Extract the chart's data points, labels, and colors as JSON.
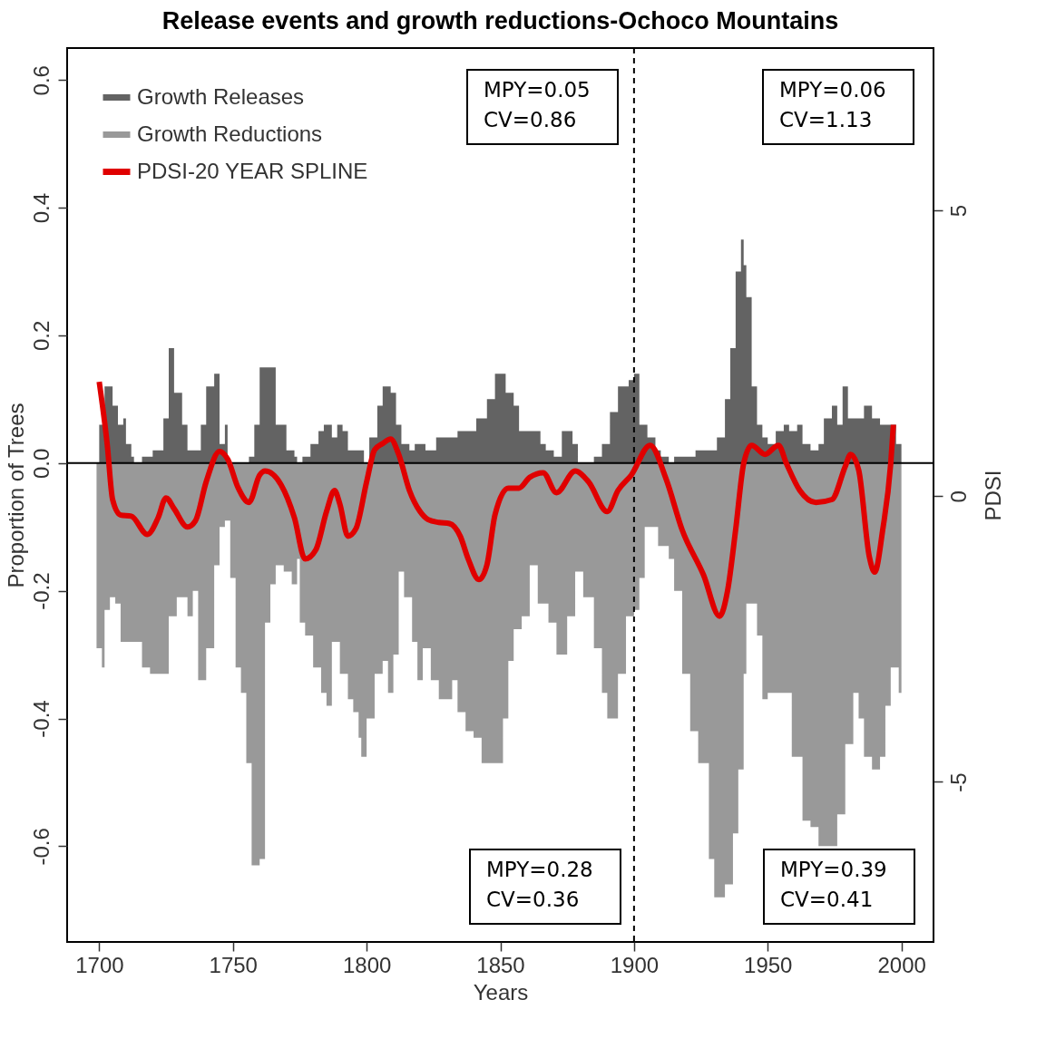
{
  "chart_data": {
    "type": "area",
    "title": "Release events and growth reductions-Ochoco Mountains",
    "xlabel": "Years",
    "ylabel": "Proportion of Trees",
    "y2label": "PDSI",
    "xlim": [
      1688,
      2012
    ],
    "xticks": [
      1700,
      1750,
      1800,
      1850,
      1900,
      1950,
      2000
    ],
    "ylim": [
      -0.75,
      0.65
    ],
    "yticks": [
      -0.6,
      -0.4,
      -0.2,
      {
        "value": 0,
        "label": "0.0"
      },
      0.2,
      0.4,
      0.6
    ],
    "y2lim": [
      -7.8,
      7.84
    ],
    "y2ticks": [
      -5,
      0,
      5
    ],
    "series": [
      {
        "name": "Growth Releases",
        "color": "#636363",
        "x": [
          1700,
          1702,
          1705,
          1707,
          1709,
          1710,
          1712,
          1713,
          1716,
          1720,
          1724,
          1726,
          1728,
          1731,
          1733,
          1736,
          1738,
          1740,
          1743,
          1745,
          1747,
          1748,
          1752,
          1756,
          1758,
          1760,
          1764,
          1766,
          1770,
          1773,
          1774,
          1776,
          1779,
          1782,
          1784,
          1787,
          1789,
          1791,
          1793,
          1797,
          1799,
          1801,
          1804,
          1806,
          1809,
          1811,
          1813,
          1816,
          1818,
          1822,
          1824,
          1826,
          1830,
          1834,
          1838,
          1841,
          1845,
          1848,
          1852,
          1855,
          1857,
          1861,
          1865,
          1867,
          1870,
          1873,
          1875,
          1877,
          1879,
          1882,
          1885,
          1888,
          1891,
          1894,
          1898,
          1900,
          1902,
          1905,
          1908,
          1910,
          1913,
          1915,
          1920,
          1923,
          1928,
          1931,
          1934,
          1936,
          1938,
          1940,
          1941,
          1942,
          1944,
          1946,
          1948,
          1950,
          1953,
          1956,
          1958,
          1961,
          1963,
          1966,
          1969,
          1971,
          1974,
          1976,
          1978,
          1980,
          1983,
          1986,
          1989,
          1992,
          1996,
          1998,
          2000
        ],
        "values": [
          0.06,
          0.12,
          0.09,
          0.06,
          0.07,
          0.03,
          0.01,
          0,
          0.01,
          0.02,
          0.07,
          0.18,
          0.11,
          0.06,
          0.02,
          0.02,
          0.06,
          0.12,
          0.14,
          0.03,
          0.06,
          0,
          0,
          0.01,
          0.06,
          0.15,
          0.15,
          0.06,
          0.02,
          0.01,
          0,
          0.01,
          0.03,
          0.05,
          0.06,
          0.04,
          0.06,
          0.05,
          0.02,
          0.02,
          0,
          0.04,
          0.09,
          0.12,
          0.11,
          0.06,
          0.03,
          0.02,
          0.03,
          0.02,
          0.02,
          0.04,
          0.04,
          0.05,
          0.05,
          0.07,
          0.1,
          0.14,
          0.11,
          0.09,
          0.05,
          0.05,
          0.03,
          0.02,
          0.01,
          0.05,
          0.05,
          0.03,
          0,
          0,
          0.01,
          0.03,
          0.08,
          0.12,
          0.13,
          0.14,
          0.06,
          0.04,
          0.02,
          0.01,
          0,
          0.01,
          0.01,
          0.02,
          0.02,
          0.04,
          0.1,
          0.18,
          0.3,
          0.35,
          0.31,
          0.26,
          0.12,
          0.06,
          0.04,
          0.03,
          0.05,
          0.06,
          0.05,
          0.06,
          0.03,
          0.02,
          0.03,
          0.07,
          0.09,
          0.06,
          0.12,
          0.07,
          0.07,
          0.09,
          0.07,
          0.06,
          0.06,
          0.03,
          0.02
        ]
      },
      {
        "name": "Growth Reductions",
        "color": "#999999",
        "x": [
          1699,
          1701,
          1702,
          1704,
          1706,
          1708,
          1712,
          1716,
          1719,
          1722,
          1726,
          1729,
          1733,
          1735,
          1737,
          1740,
          1743,
          1745,
          1747,
          1749,
          1751,
          1753,
          1755,
          1757,
          1759,
          1760,
          1762,
          1764,
          1766,
          1769,
          1772,
          1774,
          1775,
          1777,
          1780,
          1783,
          1785,
          1787,
          1790,
          1793,
          1795,
          1797,
          1798,
          1800,
          1803,
          1806,
          1808,
          1810,
          1812,
          1814,
          1817,
          1819,
          1821,
          1824,
          1827,
          1830,
          1832,
          1834,
          1837,
          1840,
          1843,
          1845,
          1848,
          1851,
          1853,
          1855,
          1858,
          1861,
          1864,
          1868,
          1871,
          1875,
          1878,
          1881,
          1885,
          1888,
          1890,
          1894,
          1897,
          1900,
          1902,
          1904,
          1906,
          1909,
          1913,
          1915,
          1918,
          1921,
          1924,
          1928,
          1930,
          1934,
          1937,
          1939,
          1941,
          1942,
          1946,
          1948,
          1950,
          1957,
          1959,
          1963,
          1966,
          1969,
          1974,
          1976,
          1979,
          1982,
          1984,
          1986,
          1989,
          1992,
          1994,
          1996,
          1999,
          2000
        ],
        "values": [
          -0.29,
          -0.32,
          -0.23,
          -0.21,
          -0.22,
          -0.28,
          -0.28,
          -0.32,
          -0.33,
          -0.33,
          -0.24,
          -0.21,
          -0.24,
          -0.2,
          -0.34,
          -0.29,
          -0.16,
          -0.1,
          -0.09,
          -0.18,
          -0.32,
          -0.36,
          -0.47,
          -0.63,
          -0.63,
          -0.62,
          -0.25,
          -0.19,
          -0.16,
          -0.17,
          -0.19,
          -0.15,
          -0.25,
          -0.27,
          -0.32,
          -0.36,
          -0.38,
          -0.28,
          -0.33,
          -0.37,
          -0.39,
          -0.43,
          -0.46,
          -0.4,
          -0.33,
          -0.31,
          -0.36,
          -0.3,
          -0.17,
          -0.21,
          -0.28,
          -0.34,
          -0.29,
          -0.34,
          -0.37,
          -0.37,
          -0.34,
          -0.39,
          -0.42,
          -0.43,
          -0.47,
          -0.47,
          -0.47,
          -0.4,
          -0.31,
          -0.26,
          -0.24,
          -0.16,
          -0.22,
          -0.25,
          -0.3,
          -0.24,
          -0.17,
          -0.21,
          -0.29,
          -0.36,
          -0.4,
          -0.33,
          -0.24,
          -0.23,
          -0.18,
          -0.1,
          -0.1,
          -0.13,
          -0.15,
          -0.2,
          -0.33,
          -0.42,
          -0.47,
          -0.62,
          -0.68,
          -0.66,
          -0.58,
          -0.48,
          -0.33,
          -0.22,
          -0.27,
          -0.37,
          -0.36,
          -0.36,
          -0.46,
          -0.56,
          -0.57,
          -0.6,
          -0.6,
          -0.55,
          -0.44,
          -0.36,
          -0.4,
          -0.46,
          -0.48,
          -0.46,
          -0.38,
          -0.32,
          -0.36,
          -0.36
        ]
      },
      {
        "name": "PDSI-20 YEAR SPLINE",
        "type": "line",
        "axis": "y2",
        "color": "#e00000",
        "x": [
          1700,
          1703,
          1705,
          1708,
          1712,
          1718,
          1722,
          1725,
          1728,
          1733,
          1736,
          1740,
          1745,
          1748,
          1752,
          1756,
          1760,
          1762,
          1768,
          1773,
          1777,
          1781,
          1785,
          1788,
          1790,
          1793,
          1796,
          1800,
          1803,
          1806,
          1809,
          1812,
          1816,
          1820,
          1823,
          1827,
          1831,
          1835,
          1838,
          1842,
          1845,
          1848,
          1853,
          1857,
          1861,
          1866,
          1871,
          1878,
          1883,
          1890,
          1894,
          1899,
          1906,
          1912,
          1918,
          1926,
          1932,
          1935,
          1938,
          1941,
          1944,
          1949,
          1954,
          1957,
          1962,
          1968,
          1974,
          1979,
          1981,
          1984,
          1988,
          1990,
          1993,
          1996,
          1997
        ],
        "values": [
          2.0,
          0.9,
          -0.06,
          -0.33,
          -0.35,
          -0.67,
          -0.38,
          -0.03,
          -0.22,
          -0.54,
          -0.43,
          0.25,
          0.78,
          0.65,
          0.14,
          -0.11,
          0.37,
          0.44,
          0.2,
          -0.38,
          -1.1,
          -0.94,
          -0.27,
          0.1,
          -0.14,
          -0.7,
          -0.57,
          0.25,
          0.81,
          0.92,
          1.0,
          0.73,
          0.1,
          -0.27,
          -0.41,
          -0.46,
          -0.48,
          -0.7,
          -1.1,
          -1.46,
          -1.2,
          -0.33,
          0.14,
          0.14,
          0.33,
          0.41,
          0.06,
          0.44,
          0.25,
          -0.27,
          0.1,
          0.37,
          0.89,
          0.3,
          -0.59,
          -1.38,
          -2.1,
          -1.65,
          -0.59,
          0.57,
          0.89,
          0.73,
          0.89,
          0.57,
          0.1,
          -0.11,
          -0.06,
          0.52,
          0.73,
          0.46,
          -1.06,
          -1.33,
          -0.59,
          0.57,
          1.25
        ]
      }
    ],
    "ref_lines": [
      {
        "axis": "y",
        "value": 0,
        "color": "#000000",
        "line_style": "solid"
      },
      {
        "axis": "x",
        "value": 1900,
        "color": "#000000",
        "line_style": "dashed"
      }
    ],
    "annotations": [
      "MPY=0.05\nCV=0.86",
      "MPY=0.06\nCV=1.13",
      "MPY=0.28\nCV=0.36",
      "MPY=0.39\nCV=0.41"
    ],
    "legend": "top left",
    "grid": false
  }
}
